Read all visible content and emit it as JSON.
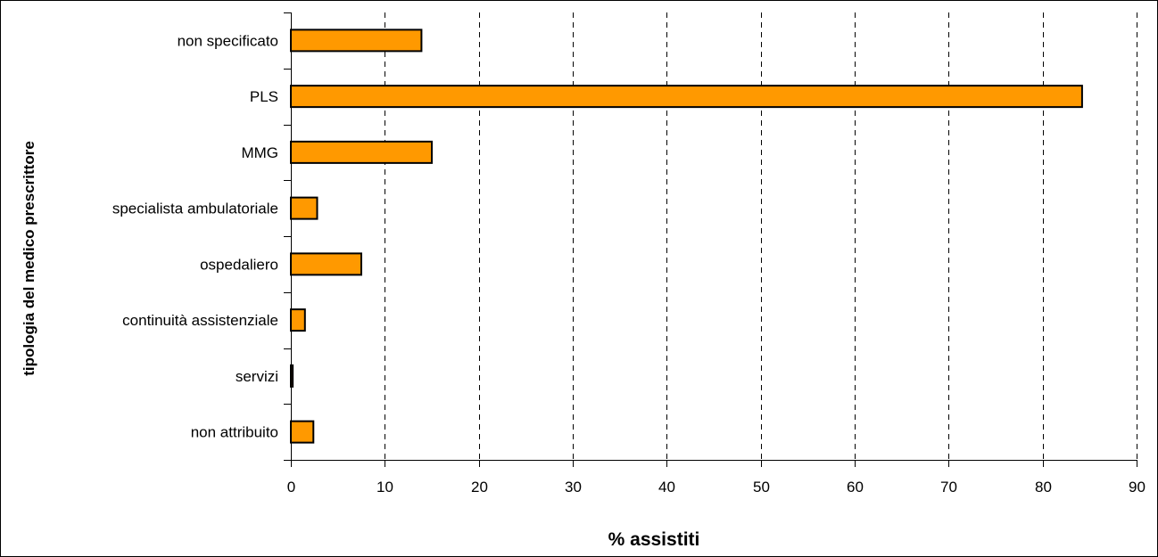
{
  "chart_data": {
    "type": "bar",
    "orientation": "horizontal",
    "categories": [
      "non specificato",
      "PLS",
      "MMG",
      "specialista ambulatoriale",
      "ospedaliero",
      "continuità assistenziale",
      "servizi",
      "non attribuito"
    ],
    "values": [
      13.9,
      84.2,
      15.0,
      2.8,
      7.5,
      1.5,
      0.2,
      2.4
    ],
    "title": "",
    "xlabel": "% assistiti",
    "ylabel": "tipologia del medico prescrittore",
    "xlim": [
      0,
      90
    ],
    "xticks": [
      0,
      10,
      20,
      30,
      40,
      50,
      60,
      70,
      80,
      90
    ],
    "grid": "vertical dashed",
    "legend": "none",
    "colors": {
      "bar_fill": "#FF9900",
      "bar_stroke": "#000000",
      "grid": "#000000",
      "background": "#FFFFFF"
    }
  }
}
